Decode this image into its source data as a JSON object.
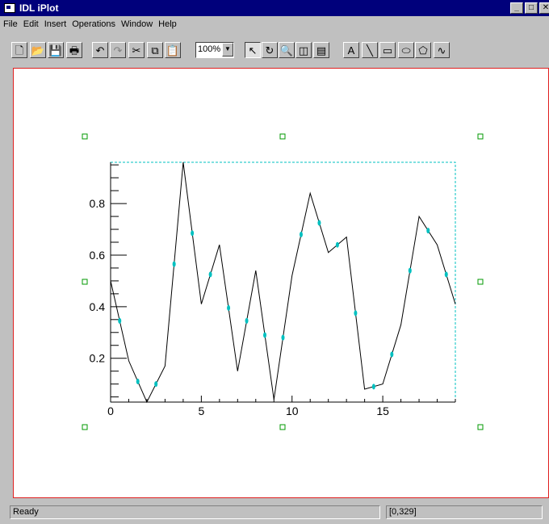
{
  "window": {
    "title": "IDL iPlot",
    "icon": "app-window-icon",
    "controls": [
      "minimize-icon",
      "maximize-icon",
      "close-icon"
    ]
  },
  "menu": [
    "File",
    "Edit",
    "Insert",
    "Operations",
    "Window",
    "Help"
  ],
  "toolbar": {
    "buttons": [
      {
        "name": "new-file-icon",
        "glyph": "🗋",
        "state": "normal"
      },
      {
        "name": "open-folder-icon",
        "glyph": "📂",
        "state": "normal"
      },
      {
        "name": "save-disk-icon",
        "glyph": "💾",
        "state": "disabled"
      },
      {
        "name": "print-icon",
        "glyph": "🖶",
        "state": "normal"
      },
      {
        "name": "undo-icon",
        "glyph": "↶",
        "state": "normal"
      },
      {
        "name": "redo-icon",
        "glyph": "↷",
        "state": "disabled"
      },
      {
        "name": "cut-icon",
        "glyph": "✂",
        "state": "normal"
      },
      {
        "name": "copy-icon",
        "glyph": "⧉",
        "state": "normal"
      },
      {
        "name": "paste-icon",
        "glyph": "📋",
        "state": "normal"
      },
      {
        "name": "arrow-select-icon",
        "glyph": "↖",
        "state": "pressed"
      },
      {
        "name": "rotate-icon",
        "glyph": "↻",
        "state": "normal"
      },
      {
        "name": "zoom-magnifier-icon",
        "glyph": "🔍",
        "state": "normal"
      },
      {
        "name": "data-range-icon",
        "glyph": "◫",
        "state": "normal"
      },
      {
        "name": "data-table-icon",
        "glyph": "▤",
        "state": "normal"
      },
      {
        "name": "text-tool-icon",
        "glyph": "A",
        "state": "normal"
      },
      {
        "name": "line-tool-icon",
        "glyph": "╲",
        "state": "normal"
      },
      {
        "name": "rectangle-tool-icon",
        "glyph": "▭",
        "state": "normal"
      },
      {
        "name": "oval-tool-icon",
        "glyph": "⬭",
        "state": "normal"
      },
      {
        "name": "polygon-tool-icon",
        "glyph": "⬠",
        "state": "normal"
      },
      {
        "name": "freehand-tool-icon",
        "glyph": "∿",
        "state": "normal"
      }
    ],
    "zoom_value": "100%"
  },
  "chart_data": {
    "type": "line",
    "x": [
      0,
      1,
      2,
      3,
      4,
      5,
      6,
      7,
      8,
      9,
      10,
      11,
      12,
      13,
      14,
      15,
      16,
      17,
      18,
      19
    ],
    "values": [
      0.5,
      0.19,
      0.03,
      0.17,
      0.96,
      0.41,
      0.64,
      0.15,
      0.54,
      0.04,
      0.52,
      0.84,
      0.61,
      0.67,
      0.08,
      0.1,
      0.33,
      0.75,
      0.64,
      0.41
    ],
    "xlim": [
      0,
      19
    ],
    "ylim": [
      0.03,
      0.96
    ],
    "x_ticks": [
      "0",
      "5",
      "10",
      "15"
    ],
    "y_ticks": [
      "0.2",
      "0.4",
      "0.6",
      "0.8"
    ],
    "title": "",
    "xlabel": "",
    "ylabel": "",
    "grid": false,
    "line_color": "#000000",
    "selection_color": "#00c0c0",
    "handle_color": "#009900"
  },
  "status": {
    "message": "Ready",
    "coords": "[0,329]"
  }
}
